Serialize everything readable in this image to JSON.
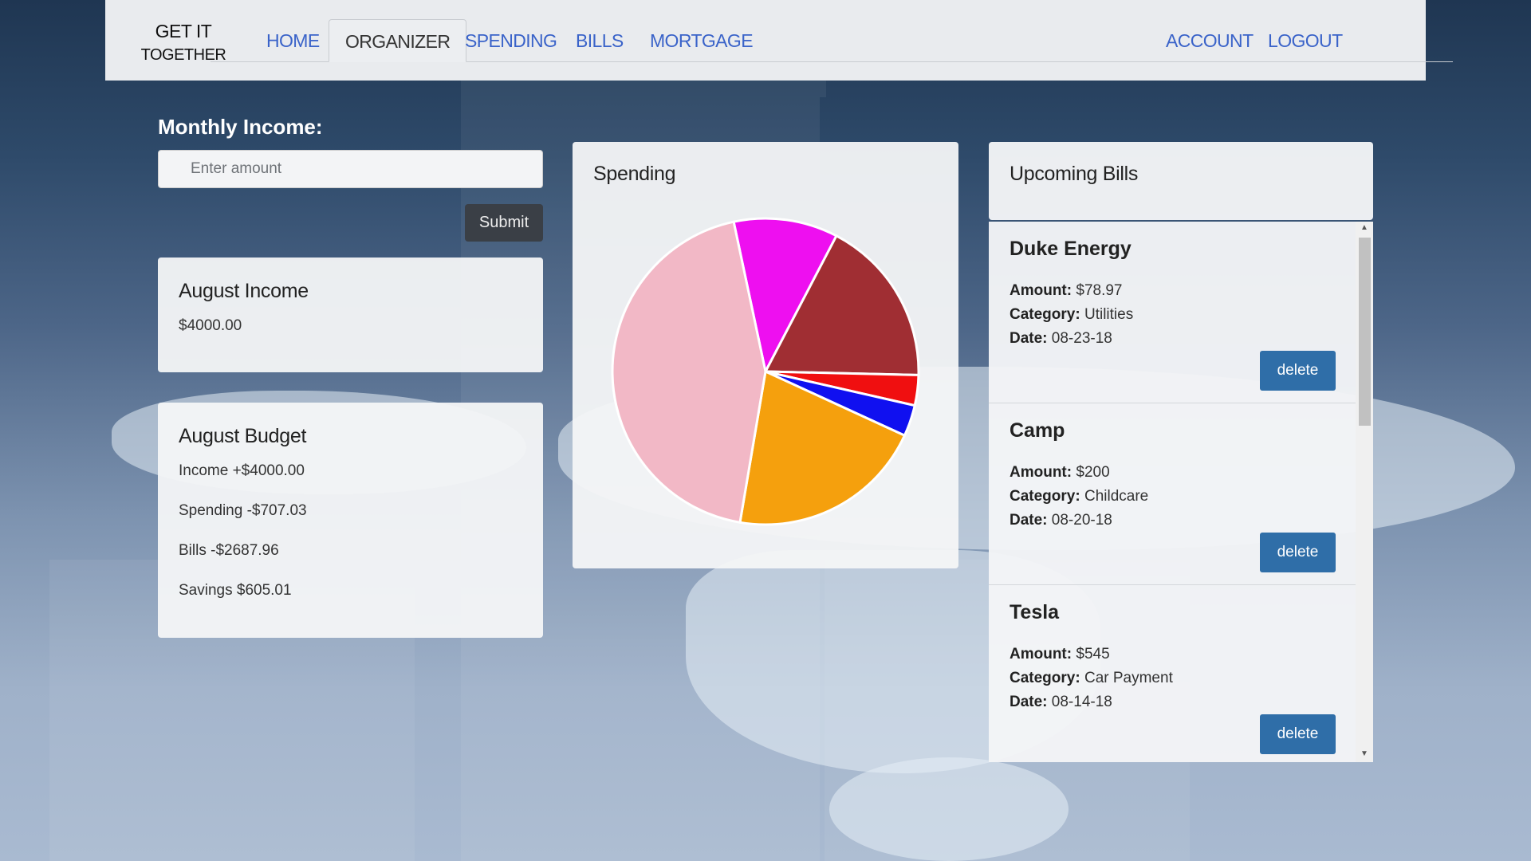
{
  "brand": {
    "line1": "GET IT",
    "line2": "TOGETHER"
  },
  "nav": {
    "home": "HOME",
    "organizer": "ORGANIZER",
    "spending": "SPENDING",
    "bills": "BILLS",
    "mortgage": "MORTGAGE",
    "account": "ACCOUNT",
    "logout": "LOGOUT"
  },
  "income_form": {
    "label": "Monthly Income:",
    "placeholder": "Enter amount",
    "submit_label": "Submit"
  },
  "income_card": {
    "title": "August Income",
    "value": "$4000.00"
  },
  "budget_card": {
    "title": "August Budget",
    "income": "Income +$4000.00",
    "spending": "Spending -$707.03",
    "bills": "Bills -$2687.96",
    "savings": "Savings $605.01"
  },
  "spending_card": {
    "title": "Spending"
  },
  "chart_data": {
    "type": "pie",
    "slices": [
      {
        "value": 11.0,
        "color": "#ee0ff0"
      },
      {
        "value": 17.7,
        "color": "#a02e33"
      },
      {
        "value": 3.2,
        "color": "#f00f10"
      },
      {
        "value": 3.3,
        "color": "#1010f0"
      },
      {
        "value": 20.8,
        "color": "#f5a00d"
      },
      {
        "value": 44.0,
        "color": "#f2b8c6"
      }
    ],
    "start_angle_deg": -12,
    "stroke": "#ffffff"
  },
  "bills": {
    "title": "Upcoming Bills",
    "amount_label": "Amount:",
    "category_label": "Category:",
    "date_label": "Date:",
    "delete_label": "delete",
    "items": [
      {
        "name": "Duke Energy",
        "amount": "$78.97",
        "category": "Utilities",
        "date": "08-23-18"
      },
      {
        "name": "Camp",
        "amount": "$200",
        "category": "Childcare",
        "date": "08-20-18"
      },
      {
        "name": "Tesla",
        "amount": "$545",
        "category": "Car Payment",
        "date": "08-14-18"
      }
    ]
  }
}
